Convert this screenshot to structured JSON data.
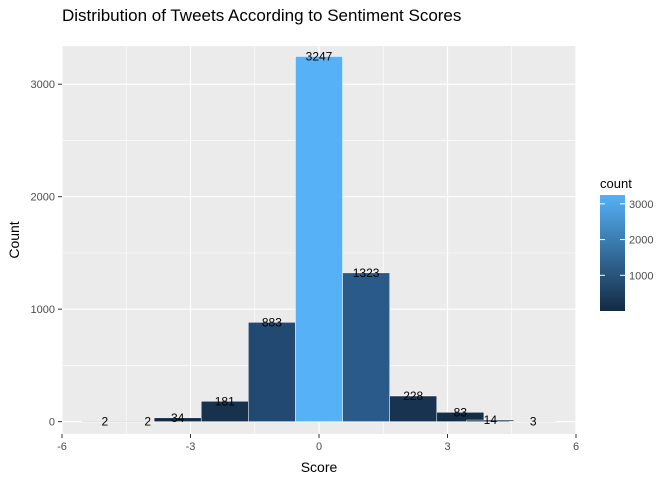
{
  "chart_data": {
    "type": "bar",
    "title": "Distribution of Tweets According to Sentiment Scores",
    "xlabel": "Score",
    "ylabel": "Count",
    "xlim": [
      -6,
      6
    ],
    "ylim": [
      -110,
      3340
    ],
    "x_ticks": [
      -6,
      -3,
      0,
      3,
      6
    ],
    "y_ticks": [
      0,
      1000,
      2000,
      3000
    ],
    "bin_width": 1.1,
    "bars": [
      {
        "x": -5.0,
        "value": 2,
        "label": "2",
        "color": "#132B43"
      },
      {
        "x": -4.0,
        "value": 2,
        "label": "2",
        "color": "#132B43"
      },
      {
        "x": -3.3,
        "value": 34,
        "label": "34",
        "color": "#142C45"
      },
      {
        "x": -2.2,
        "value": 181,
        "label": "181",
        "color": "#17324D"
      },
      {
        "x": -1.1,
        "value": 883,
        "label": "883",
        "color": "#224972"
      },
      {
        "x": 0.0,
        "value": 3247,
        "label": "3247",
        "color": "#56B1F7"
      },
      {
        "x": 1.1,
        "value": 1323,
        "label": "1323",
        "color": "#2A5A8A"
      },
      {
        "x": 2.2,
        "value": 228,
        "label": "228",
        "color": "#183350"
      },
      {
        "x": 3.3,
        "value": 83,
        "label": "83",
        "color": "#152E47"
      },
      {
        "x": 4.0,
        "value": 14,
        "label": "14",
        "color": "#132B43"
      },
      {
        "x": 5.0,
        "value": 3,
        "label": "3",
        "color": "#132B43"
      }
    ],
    "grid": true,
    "panel_background": "#EBEBEB",
    "legend": {
      "title": "count",
      "placement": "right",
      "ticks": [
        1000,
        2000,
        3000
      ],
      "tick_labels": [
        "1000",
        "2000",
        "3000"
      ],
      "range": [
        2,
        3247
      ],
      "color_low": "#132B43",
      "color_high": "#56B1F7"
    }
  }
}
